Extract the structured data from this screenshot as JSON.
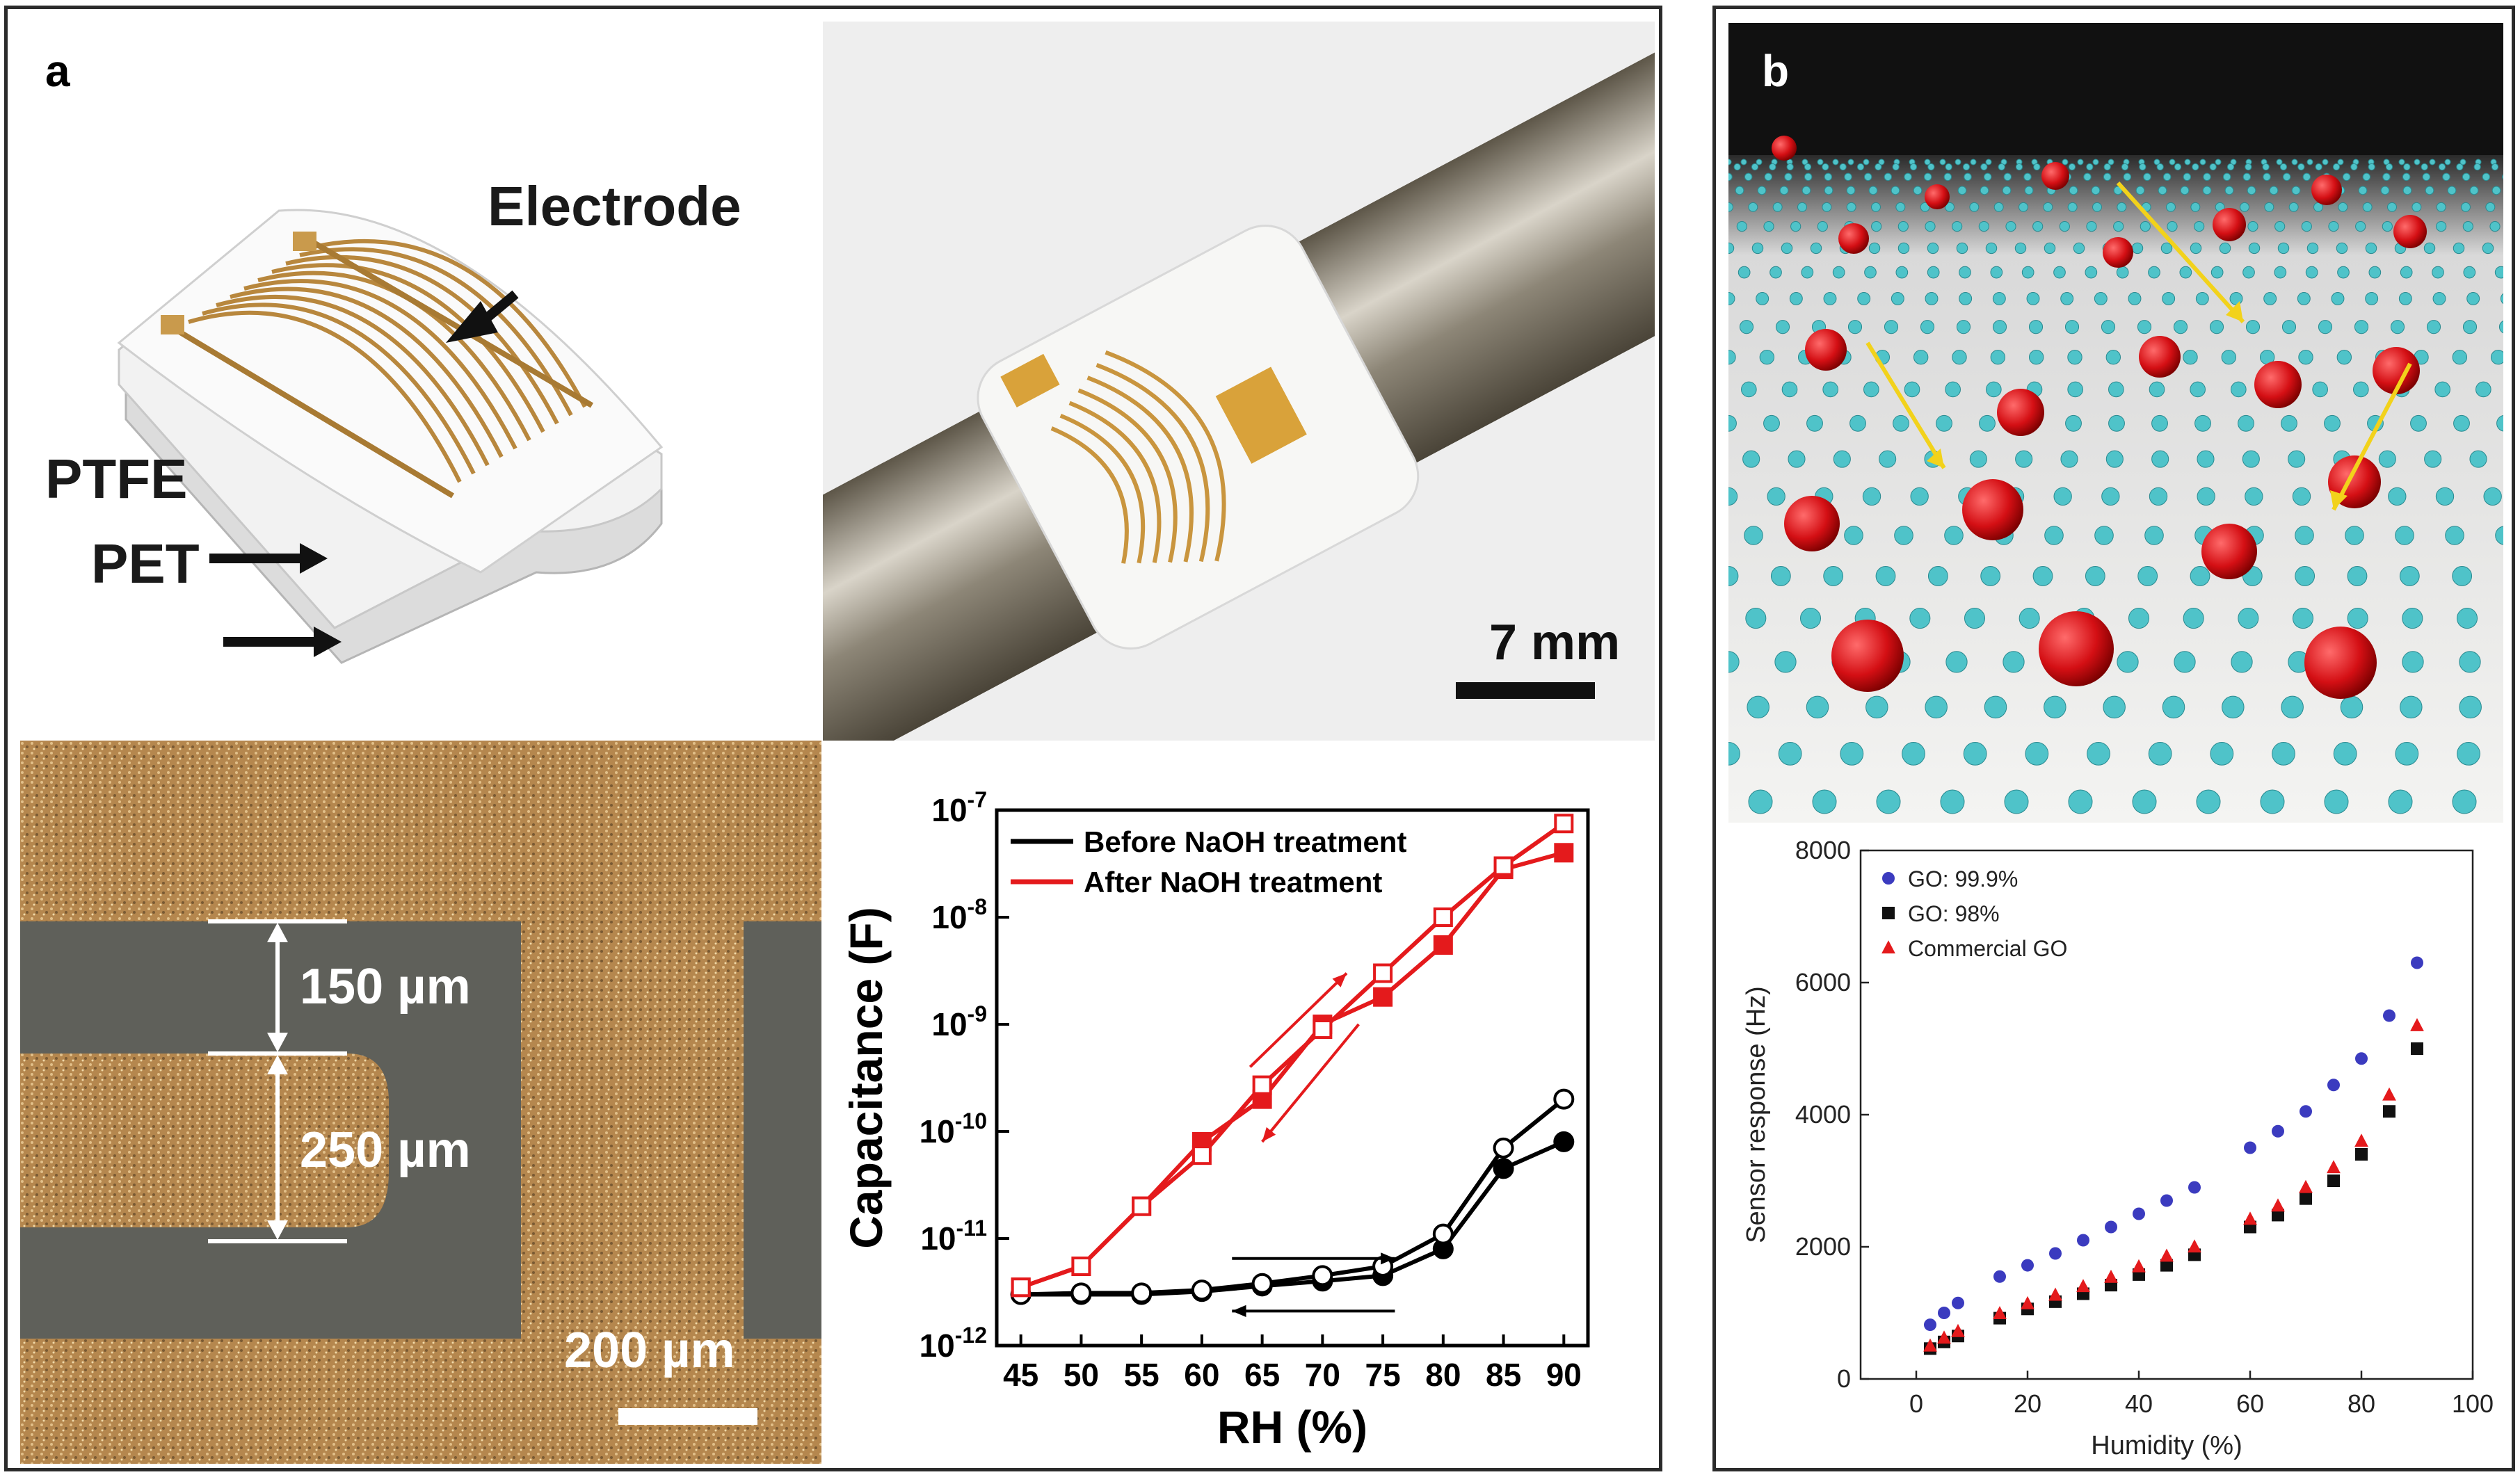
{
  "panel_a": {
    "label": "a",
    "schematic_labels": {
      "electrode": "Electrode",
      "ptfe": "PTFE",
      "pet": "PET"
    },
    "photo_scalebar": "7 mm",
    "micrograph": {
      "dim1": "150 µm",
      "dim2": "250 µm",
      "scalebar": "200 µm"
    }
  },
  "panel_b": {
    "label": "b"
  },
  "chart_data": [
    {
      "type": "line",
      "xlabel": "RH (%)",
      "ylabel": "Capacitance (F)",
      "yscale": "log",
      "ylim": [
        1e-12,
        1e-07
      ],
      "x": [
        45,
        50,
        55,
        60,
        65,
        70,
        75,
        80,
        85,
        90
      ],
      "x_ticks": [
        "45",
        "50",
        "55",
        "60",
        "65",
        "70",
        "75",
        "80",
        "85",
        "90"
      ],
      "y_ticks": [
        "10-12",
        "10-11",
        "10-10",
        "10-9",
        "10-8",
        "10-7"
      ],
      "legend": [
        "Before NaOH treatment",
        "After NaOH treatment"
      ],
      "series": [
        {
          "name": "Before NaOH treatment (adsorption)",
          "color": "#000000",
          "marker": "filled-circle",
          "values": [
            3e-12,
            3e-12,
            3e-12,
            3.2e-12,
            3.6e-12,
            4e-12,
            4.5e-12,
            8e-12,
            4.5e-11,
            8e-11
          ]
        },
        {
          "name": "Before NaOH treatment (desorption)",
          "color": "#000000",
          "marker": "open-circle",
          "values": [
            3e-12,
            3.1e-12,
            3.1e-12,
            3.3e-12,
            3.8e-12,
            4.5e-12,
            5.5e-12,
            1.1e-11,
            7e-11,
            2e-10
          ]
        },
        {
          "name": "After NaOH treatment (adsorption)",
          "color": "#e41a1c",
          "marker": "filled-square",
          "values": [
            3.5e-12,
            5.5e-12,
            2e-11,
            8e-11,
            2e-10,
            1e-09,
            1.8e-09,
            5.5e-09,
            2.8e-08,
            4e-08
          ]
        },
        {
          "name": "After NaOH treatment (desorption)",
          "color": "#e41a1c",
          "marker": "open-square",
          "values": [
            3.5e-12,
            5.5e-12,
            2e-11,
            6e-11,
            2.7e-10,
            9e-10,
            3e-09,
            1e-08,
            3e-08,
            7.5e-08
          ]
        }
      ]
    },
    {
      "type": "scatter",
      "xlabel": "Humidity (%)",
      "ylabel": "Sensor response (Hz)",
      "xlim": [
        -10,
        100
      ],
      "ylim": [
        0,
        8000
      ],
      "x_ticks": [
        "0",
        "20",
        "40",
        "60",
        "80",
        "100"
      ],
      "y_ticks": [
        "0",
        "2000",
        "4000",
        "6000",
        "8000"
      ],
      "x": [
        2.5,
        5,
        7.5,
        15,
        20,
        25,
        30,
        35,
        40,
        45,
        50,
        60,
        65,
        70,
        75,
        80,
        85,
        90
      ],
      "series": [
        {
          "name": "GO: 99.9%",
          "color": "#3b3bbf",
          "marker": "circle",
          "values": [
            820,
            1000,
            1150,
            1550,
            1720,
            1900,
            2100,
            2300,
            2500,
            2700,
            2900,
            3500,
            3750,
            4050,
            4450,
            4850,
            5500,
            6300
          ]
        },
        {
          "name": "GO: 98%",
          "color": "#111111",
          "marker": "square",
          "values": [
            460,
            560,
            650,
            920,
            1060,
            1170,
            1290,
            1420,
            1580,
            1720,
            1880,
            2300,
            2480,
            2730,
            3000,
            3400,
            4050,
            5000
          ]
        },
        {
          "name": "Commercial GO",
          "color": "#e41a1c",
          "marker": "triangle",
          "values": [
            500,
            620,
            720,
            990,
            1140,
            1270,
            1400,
            1540,
            1700,
            1860,
            2000,
            2420,
            2620,
            2900,
            3200,
            3600,
            4300,
            5350
          ]
        }
      ]
    }
  ]
}
